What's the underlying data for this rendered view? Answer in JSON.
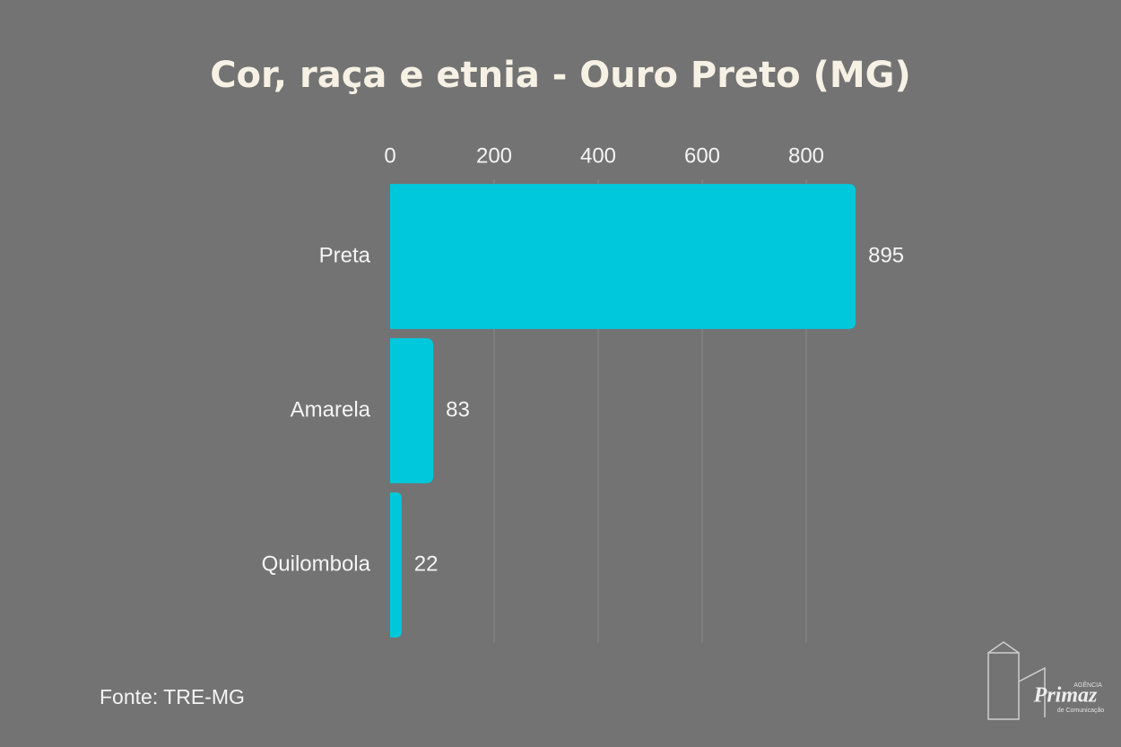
{
  "chart_data": {
    "type": "bar",
    "orientation": "horizontal",
    "title": "Cor, raça e etnia - Ouro Preto (MG)",
    "categories": [
      "Preta",
      "Amarela",
      "Quilombola"
    ],
    "values": [
      895,
      83,
      22
    ],
    "color": "#00c8dc",
    "xlim": [
      0,
      900
    ],
    "xticks": [
      0,
      200,
      400,
      600,
      800
    ],
    "grid": true,
    "source": "Fonte: TRE-MG"
  },
  "logo": {
    "kicker": "AGÊNCIA",
    "name": "Primaz",
    "tagline": "de Comunicação"
  }
}
